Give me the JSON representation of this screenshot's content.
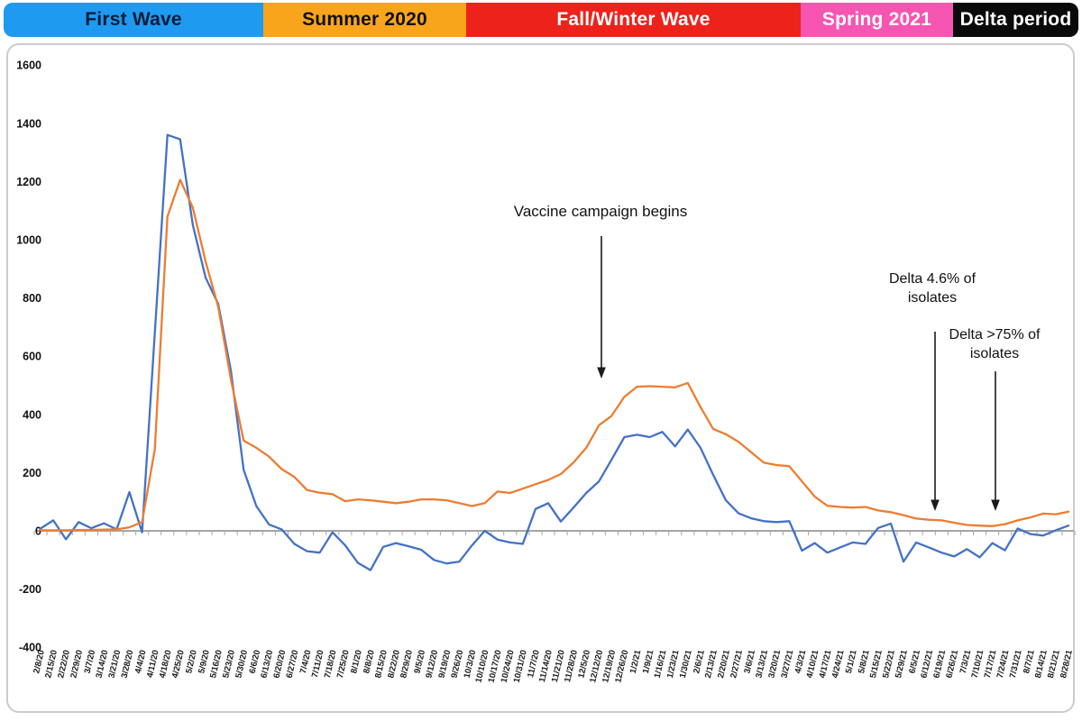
{
  "page": {
    "background": "#ffffff"
  },
  "timeline_bands": {
    "items": [
      {
        "label": "First Wave",
        "bg": "#1e9af0",
        "text_color": "#0b1c38"
      },
      {
        "label": "Summer 2020",
        "bg": "#f9a51c",
        "text_color": "#101010"
      },
      {
        "label": "Fall/Winter Wave",
        "bg": "#ed221b",
        "text_color": "#ffffff"
      },
      {
        "label": "Spring 2021",
        "bg": "#f655b2",
        "text_color": "#ffffff"
      },
      {
        "label": "Delta period",
        "bg": "#0a0a0a",
        "text_color": "#ffffff"
      }
    ]
  },
  "annotations": {
    "vaccine": {
      "text": "Vaccine campaign begins"
    },
    "delta_low": {
      "line1": "Delta 4.6% of",
      "line2": "isolates"
    },
    "delta_high": {
      "line1": "Delta >75% of",
      "line2": "isolates"
    }
  },
  "chart_data": {
    "type": "line",
    "title": "",
    "xlabel": "",
    "ylabel": "",
    "ylim": [
      -400,
      1600
    ],
    "yticks": [
      1600,
      1400,
      1200,
      1000,
      800,
      600,
      400,
      200,
      0,
      -200,
      -400
    ],
    "grid": "zero-axis-line-only",
    "legend": "none",
    "axis_color": "#a6a6a6",
    "label_color": "#1a1a1a",
    "categories": [
      "2/8/20",
      "2/15/20",
      "2/22/20",
      "2/29/20",
      "3/7/20",
      "3/14/20",
      "3/21/20",
      "3/28/20",
      "4/4/20",
      "4/11/20",
      "4/18/20",
      "4/25/20",
      "5/2/20",
      "5/9/20",
      "5/16/20",
      "5/23/20",
      "5/30/20",
      "6/6/20",
      "6/13/20",
      "6/20/20",
      "6/27/20",
      "7/4/20",
      "7/11/20",
      "7/18/20",
      "7/25/20",
      "8/1/20",
      "8/8/20",
      "8/15/20",
      "8/22/20",
      "8/29/20",
      "9/5/20",
      "9/12/20",
      "9/19/20",
      "9/26/20",
      "10/3/20",
      "10/10/20",
      "10/17/20",
      "10/24/20",
      "10/31/20",
      "11/7/20",
      "11/14/20",
      "11/21/20",
      "11/28/20",
      "12/5/20",
      "12/12/20",
      "12/19/20",
      "12/26/20",
      "1/2/21",
      "1/9/21",
      "1/16/21",
      "1/23/21",
      "1/30/21",
      "2/6/21",
      "2/13/21",
      "2/20/21",
      "2/27/21",
      "3/6/21",
      "3/13/21",
      "3/20/21",
      "3/27/21",
      "4/3/21",
      "4/10/21",
      "4/17/21",
      "4/24/21",
      "5/1/21",
      "5/8/21",
      "5/15/21",
      "5/22/21",
      "5/29/21",
      "6/5/21",
      "6/12/21",
      "6/19/21",
      "6/26/21",
      "7/3/21",
      "7/10/21",
      "7/17/21",
      "7/24/21",
      "7/31/21",
      "8/7/21",
      "8/14/21",
      "8/21/21",
      "8/28/21"
    ],
    "series": [
      {
        "name": "blue-series",
        "color": "#4472c4",
        "values": [
          8,
          36,
          -29,
          30,
          9,
          26,
          5,
          133,
          -5,
          680,
          1360,
          1345,
          1050,
          870,
          780,
          550,
          210,
          85,
          22,
          5,
          -45,
          -70,
          -75,
          -5,
          -50,
          -110,
          -135,
          -55,
          -42,
          -53,
          -65,
          -100,
          -112,
          -106,
          -50,
          0,
          -30,
          -40,
          -45,
          75,
          95,
          32,
          80,
          130,
          170,
          245,
          322,
          330,
          322,
          340,
          290,
          348,
          285,
          193,
          105,
          60,
          43,
          33,
          30,
          33,
          -68,
          -42,
          -75,
          -57,
          -40,
          -45,
          10,
          25,
          -106,
          -40,
          -57,
          -75,
          -88,
          -63,
          -91,
          -42,
          -67,
          8,
          -11,
          -16,
          2,
          18
        ]
      },
      {
        "name": "orange-series",
        "color": "#ed7d31",
        "values": [
          2,
          2,
          2,
          3,
          3,
          4,
          5,
          12,
          30,
          280,
          1080,
          1206,
          1110,
          925,
          770,
          520,
          310,
          285,
          255,
          212,
          185,
          140,
          131,
          126,
          102,
          108,
          105,
          100,
          95,
          100,
          108,
          108,
          105,
          95,
          85,
          95,
          135,
          130,
          145,
          160,
          175,
          195,
          235,
          285,
          363,
          395,
          460,
          495,
          497,
          495,
          493,
          508,
          425,
          350,
          332,
          306,
          270,
          234,
          226,
          222,
          170,
          118,
          86,
          82,
          80,
          82,
          70,
          64,
          54,
          42,
          38,
          36,
          28,
          20,
          18,
          16,
          23,
          36,
          46,
          59,
          57,
          66
        ]
      }
    ],
    "annotations": [
      "Vaccine campaign begins",
      "Delta 4.6% of isolates",
      "Delta >75% of isolates"
    ]
  }
}
